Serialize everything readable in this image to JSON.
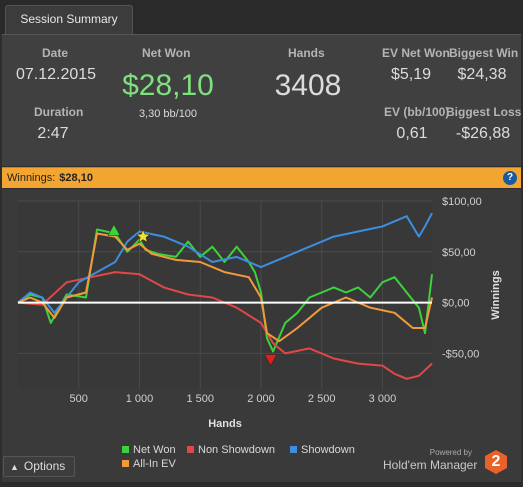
{
  "tab": {
    "label": "Session Summary"
  },
  "summary": {
    "date_label": "Date",
    "date_value": "07.12.2015",
    "duration_label": "Duration",
    "duration_value": "2:47",
    "net_won_label": "Net Won",
    "net_won_value": "$28,10",
    "bb_value": "3,30 bb/100",
    "hands_label": "Hands",
    "hands_value": "3408",
    "ev_net_won_label": "EV Net Won",
    "ev_net_won_value": "$5,19",
    "ev_bb_label": "EV (bb/100)",
    "ev_bb_value": "0,61",
    "biggest_win_label": "Biggest Win",
    "biggest_win_value": "$24,38",
    "biggest_loss_label": "Biggest Loss",
    "biggest_loss_value": "-$26,88"
  },
  "winnings_bar": {
    "label": "Winnings:",
    "value": "$28,10",
    "help_icon": "?"
  },
  "colors": {
    "net_won": "#3cd23c",
    "non_showdown": "#e04848",
    "showdown": "#3c8ee0",
    "all_in_ev": "#f09a3c",
    "accent": "#f3a531"
  },
  "chart_data": {
    "type": "line",
    "xlabel": "Hands",
    "ylabel": "Winnings",
    "xlim": [
      0,
      3408
    ],
    "ylim": [
      -85,
      100
    ],
    "x_ticks": [
      500,
      1000,
      1500,
      2000,
      2500,
      3000
    ],
    "x_tick_labels": [
      "500",
      "1 000",
      "1 500",
      "2 000",
      "2 500",
      "3 000"
    ],
    "y_ticks": [
      100,
      50,
      0,
      -50
    ],
    "y_tick_labels": [
      "$100,00",
      "$50,00",
      "$0,00",
      "-$50,00"
    ],
    "grid": true,
    "series": [
      {
        "name": "Net Won",
        "color": "#3cd23c",
        "x": [
          0,
          100,
          200,
          270,
          400,
          560,
          650,
          800,
          900,
          1000,
          1050,
          1150,
          1300,
          1400,
          1500,
          1600,
          1700,
          1800,
          1900,
          1950,
          2000,
          2050,
          2100,
          2200,
          2300,
          2400,
          2500,
          2600,
          2700,
          2800,
          2900,
          3000,
          3100,
          3200,
          3300,
          3350,
          3408
        ],
        "values": [
          0,
          8,
          5,
          -20,
          8,
          5,
          72,
          68,
          50,
          62,
          52,
          48,
          45,
          60,
          45,
          55,
          40,
          55,
          40,
          30,
          10,
          -35,
          -48,
          -20,
          -10,
          5,
          10,
          15,
          10,
          15,
          5,
          20,
          25,
          10,
          -5,
          -30,
          28
        ]
      },
      {
        "name": "Non Showdown",
        "color": "#e04848",
        "x": [
          0,
          200,
          400,
          600,
          800,
          1000,
          1200,
          1400,
          1600,
          1800,
          2000,
          2100,
          2200,
          2400,
          2600,
          2800,
          3000,
          3100,
          3200,
          3300,
          3408
        ],
        "values": [
          0,
          -2,
          20,
          25,
          30,
          28,
          15,
          8,
          5,
          -5,
          -20,
          -40,
          -50,
          -45,
          -55,
          -60,
          -62,
          -70,
          -75,
          -72,
          -60
        ]
      },
      {
        "name": "Showdown",
        "color": "#3c8ee0",
        "x": [
          0,
          100,
          200,
          300,
          500,
          650,
          800,
          900,
          1000,
          1200,
          1400,
          1600,
          1800,
          2000,
          2200,
          2400,
          2600,
          2800,
          3000,
          3100,
          3200,
          3300,
          3350,
          3408
        ],
        "values": [
          0,
          10,
          5,
          -10,
          20,
          30,
          40,
          60,
          70,
          65,
          55,
          40,
          45,
          35,
          45,
          55,
          65,
          70,
          75,
          80,
          85,
          65,
          75,
          88
        ]
      },
      {
        "name": "All-In EV",
        "color": "#f09a3c",
        "x": [
          0,
          100,
          200,
          300,
          400,
          560,
          650,
          800,
          900,
          1000,
          1100,
          1300,
          1500,
          1700,
          1900,
          2000,
          2050,
          2150,
          2300,
          2500,
          2700,
          2900,
          3100,
          3250,
          3350,
          3408
        ],
        "values": [
          0,
          5,
          0,
          -15,
          5,
          10,
          68,
          65,
          52,
          58,
          48,
          42,
          40,
          30,
          25,
          5,
          -30,
          -38,
          -25,
          -5,
          5,
          -5,
          -10,
          -25,
          -25,
          5
        ]
      }
    ],
    "markers": [
      {
        "label": "Biggest Win",
        "x": 790,
        "y": 70,
        "shape": "triangle-up",
        "color": "#3cd23c"
      },
      {
        "label": "EV Best",
        "x": 1030,
        "y": 65,
        "shape": "star",
        "color": "#f0e030"
      },
      {
        "label": "Biggest Loss",
        "x": 2080,
        "y": -55,
        "shape": "triangle-down",
        "color": "#e02020"
      }
    ]
  },
  "legend": {
    "net_won": "Net Won",
    "non_showdown": "Non Showdown",
    "showdown": "Showdown",
    "all_in_ev": "All-In EV"
  },
  "footer": {
    "options_label": "Options",
    "options_icon": "chevron-up-icon",
    "powered_by": "Powered by",
    "brand": "Hold'em Manager",
    "brand_logo": "2"
  }
}
